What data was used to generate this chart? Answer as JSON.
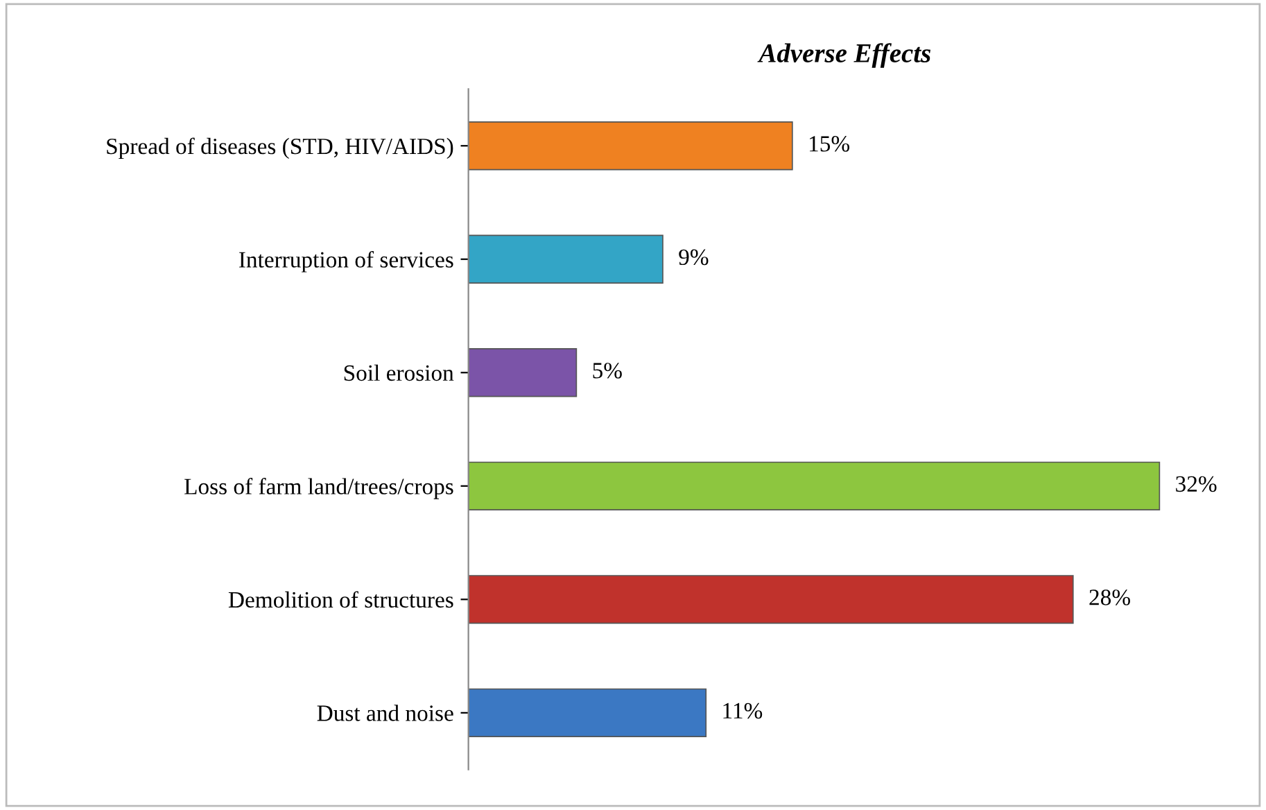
{
  "chart_data": {
    "type": "bar",
    "orientation": "horizontal",
    "title": "Adverse Effects",
    "categories": [
      "Spread of diseases (STD, HIV/AIDS)",
      "Interruption of services",
      "Soil erosion",
      "Loss of farm land/trees/crops",
      "Demolition of structures",
      "Dust and noise"
    ],
    "values": [
      15,
      9,
      5,
      32,
      28,
      11
    ],
    "colors": [
      "#ef8121",
      "#33a5c6",
      "#7b54a8",
      "#8dc63f",
      "#c0322c",
      "#3b78c3"
    ],
    "value_labels": [
      "15%",
      "9%",
      "5%",
      "32%",
      "28%",
      "11%"
    ],
    "grid": false,
    "legend": false
  }
}
